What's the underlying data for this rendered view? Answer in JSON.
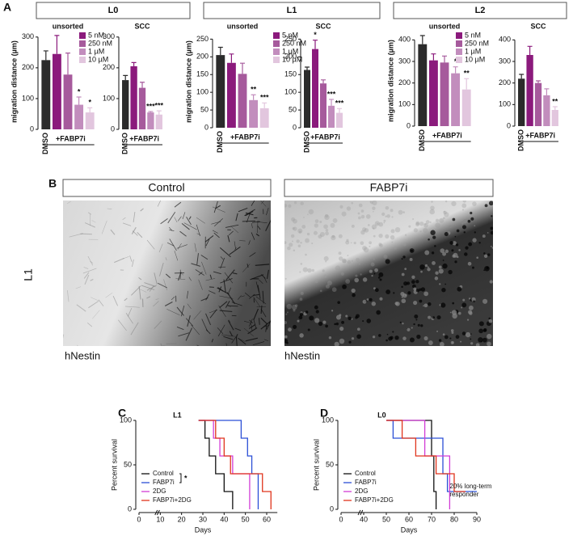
{
  "panel_labels": [
    "A",
    "B",
    "C",
    "D"
  ],
  "group_titles": [
    "L0",
    "L1",
    "L2"
  ],
  "images": {
    "row_label": "L1",
    "panels": [
      {
        "title": "Control",
        "stain": "hNestin"
      },
      {
        "title": "FABP7i",
        "stain": "hNestin"
      }
    ]
  },
  "chart_data": [
    {
      "type": "bar",
      "title": "unsorted",
      "ylabel": "migration distance (µm)",
      "categories": [
        "DMSO",
        null,
        null,
        null,
        null
      ],
      "group_label": "+FABP7i",
      "values": [
        225,
        245,
        178,
        80,
        55
      ],
      "errors": [
        30,
        60,
        70,
        25,
        15
      ],
      "stars": [
        null,
        null,
        null,
        "*",
        "*"
      ],
      "colors": [
        "#2b2b2b",
        "#8b1a7c",
        "#a65a9c",
        "#c28dbd",
        "#e2c6de"
      ],
      "legend": [
        "5 nM",
        "250 nM",
        "1 µM",
        "10 µM"
      ],
      "ylim": [
        0,
        310
      ],
      "yticks": [
        0,
        100,
        200,
        300
      ]
    },
    {
      "type": "bar",
      "title": "SCC",
      "categories": [
        "DMSO",
        null,
        null,
        null,
        null
      ],
      "group_label": "+FABP7i",
      "values": [
        160,
        205,
        135,
        55,
        48
      ],
      "errors": [
        15,
        12,
        18,
        3,
        12
      ],
      "stars": [
        null,
        null,
        null,
        "***",
        "***"
      ],
      "colors": [
        "#2b2b2b",
        "#8b1a7c",
        "#a65a9c",
        "#c28dbd",
        "#e2c6de"
      ],
      "ylim": [
        0,
        310
      ],
      "yticks": [
        0,
        100,
        200,
        300
      ]
    },
    {
      "type": "bar",
      "title": "unsorted",
      "ylabel": "migration distance (µm)",
      "categories": [
        "DMSO",
        null,
        null,
        null,
        null
      ],
      "group_label": "+FABP7i",
      "values": [
        205,
        183,
        152,
        78,
        55
      ],
      "errors": [
        22,
        25,
        30,
        15,
        15
      ],
      "stars": [
        null,
        null,
        null,
        "**",
        "***"
      ],
      "colors": [
        "#2b2b2b",
        "#8b1a7c",
        "#a65a9c",
        "#c28dbd",
        "#e2c6de"
      ],
      "legend": [
        "5 nM",
        "250 nM",
        "1 µM",
        "10 µM"
      ],
      "ylim": [
        0,
        260
      ],
      "yticks": [
        0,
        50,
        100,
        150,
        200,
        250
      ]
    },
    {
      "type": "bar",
      "title": "SCC",
      "categories": [
        "DMSO",
        null,
        null,
        null,
        null
      ],
      "group_label": "+FABP7i",
      "values": [
        163,
        222,
        125,
        62,
        42
      ],
      "errors": [
        8,
        25,
        10,
        18,
        12
      ],
      "stars": [
        null,
        "*",
        null,
        "***",
        "***"
      ],
      "colors": [
        "#2b2b2b",
        "#8b1a7c",
        "#a65a9c",
        "#c28dbd",
        "#e2c6de"
      ],
      "ylim": [
        0,
        260
      ],
      "yticks": [
        0,
        50,
        100,
        150,
        200,
        250
      ]
    },
    {
      "type": "bar",
      "title": "unsorted",
      "ylabel": "migration distance (µm)",
      "categories": [
        "DMSO",
        null,
        null,
        null,
        null
      ],
      "group_label": "+FABP7i",
      "values": [
        380,
        305,
        295,
        245,
        170
      ],
      "errors": [
        40,
        30,
        30,
        30,
        50
      ],
      "stars": [
        null,
        null,
        null,
        "*",
        "**"
      ],
      "colors": [
        "#2b2b2b",
        "#8b1a7c",
        "#a65a9c",
        "#c28dbd",
        "#e2c6de"
      ],
      "legend": [
        "5 nM",
        "250 nM",
        "1 µM",
        "10 µM"
      ],
      "ylim": [
        0,
        420
      ],
      "yticks": [
        0,
        100,
        200,
        300,
        400
      ]
    },
    {
      "type": "bar",
      "title": "SCC",
      "categories": [
        "DMSO",
        null,
        null,
        null,
        null
      ],
      "group_label": "+FABP7i",
      "values": [
        220,
        330,
        200,
        143,
        75
      ],
      "errors": [
        20,
        40,
        10,
        30,
        15
      ],
      "stars": [
        null,
        null,
        null,
        null,
        "**"
      ],
      "colors": [
        "#2b2b2b",
        "#8b1a7c",
        "#a65a9c",
        "#c28dbd",
        "#e2c6de"
      ],
      "ylim": [
        0,
        420
      ],
      "yticks": [
        0,
        100,
        200,
        300,
        400
      ]
    },
    {
      "type": "survival",
      "title": "L1",
      "xlabel": "Days",
      "ylabel": "Percent survival",
      "annotation": [
        "*"
      ],
      "xlim": [
        0,
        65
      ],
      "xticks": [
        0,
        10,
        20,
        30,
        40,
        50,
        60
      ],
      "ylim": [
        0,
        100
      ],
      "yticks": [
        0,
        50,
        100
      ],
      "series": [
        {
          "name": "Control",
          "color": "#111111",
          "x": [
            28,
            31,
            33,
            36,
            40,
            44
          ],
          "values": [
            100,
            80,
            60,
            40,
            20,
            0
          ]
        },
        {
          "name": "FABP7i",
          "color": "#2b4fd6",
          "x": [
            28,
            48,
            51,
            53,
            56
          ],
          "values": [
            100,
            80,
            60,
            40,
            0
          ]
        },
        {
          "name": "2DG",
          "color": "#d23cd6",
          "x": [
            28,
            35,
            38,
            44,
            52
          ],
          "values": [
            100,
            80,
            60,
            40,
            0
          ]
        },
        {
          "name": "FABP7i+2DG",
          "color": "#e0341c",
          "x": [
            28,
            36,
            40,
            43,
            58,
            62
          ],
          "values": [
            100,
            80,
            60,
            40,
            20,
            0
          ]
        }
      ]
    },
    {
      "type": "survival",
      "title": "L0",
      "xlabel": "Days",
      "ylabel": "Percent survival",
      "annotation": [
        "20% long-term",
        "responder"
      ],
      "xlim": [
        0,
        90
      ],
      "xticks": [
        0,
        40,
        50,
        60,
        70,
        80,
        90
      ],
      "ylim": [
        0,
        100
      ],
      "yticks": [
        0,
        50,
        100
      ],
      "series": [
        {
          "name": "Control",
          "color": "#111111",
          "x": [
            50,
            70,
            71,
            72
          ],
          "values": [
            100,
            60,
            20,
            0
          ]
        },
        {
          "name": "FABP7i",
          "color": "#2b4fd6",
          "x": [
            50,
            53,
            75,
            77,
            90
          ],
          "values": [
            100,
            80,
            40,
            20,
            20
          ]
        },
        {
          "name": "2DG",
          "color": "#d23cd6",
          "x": [
            50,
            67,
            78
          ],
          "values": [
            100,
            60,
            0
          ]
        },
        {
          "name": "FABP7i+2DG",
          "color": "#e0341c",
          "x": [
            50,
            57,
            63,
            72,
            80,
            85
          ],
          "values": [
            100,
            80,
            60,
            40,
            20,
            20
          ]
        }
      ]
    }
  ]
}
